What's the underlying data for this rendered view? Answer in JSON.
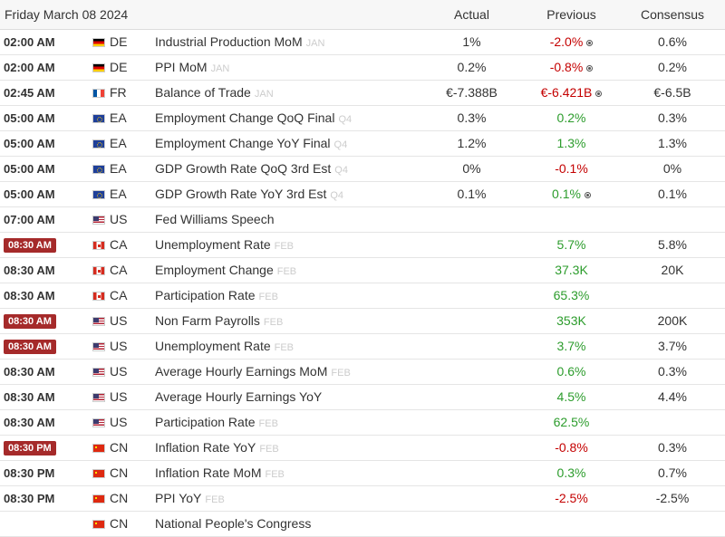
{
  "header": {
    "date": "Friday March 08 2024",
    "actual": "Actual",
    "previous": "Previous",
    "consensus": "Consensus"
  },
  "rows": [
    {
      "time": "02:00 AM",
      "highlight": false,
      "flag": "DE",
      "country": "DE",
      "event": "Industrial Production MoM",
      "period": "JAN",
      "actual": "1%",
      "actual_color": "",
      "previous": "-2.0%",
      "previous_color": "neg",
      "revised": true,
      "consensus": "0.6%",
      "consensus_color": ""
    },
    {
      "time": "02:00 AM",
      "highlight": false,
      "flag": "DE",
      "country": "DE",
      "event": "PPI MoM",
      "period": "JAN",
      "actual": "0.2%",
      "actual_color": "",
      "previous": "-0.8%",
      "previous_color": "neg",
      "revised": true,
      "consensus": "0.2%",
      "consensus_color": ""
    },
    {
      "time": "02:45 AM",
      "highlight": false,
      "flag": "FR",
      "country": "FR",
      "event": "Balance of Trade",
      "period": "JAN",
      "actual": "€-7.388B",
      "actual_color": "",
      "previous": "€-6.421B",
      "previous_color": "neg",
      "revised": true,
      "consensus": "€-6.5B",
      "consensus_color": ""
    },
    {
      "time": "05:00 AM",
      "highlight": false,
      "flag": "EA",
      "country": "EA",
      "event": "Employment Change QoQ Final",
      "period": "Q4",
      "actual": "0.3%",
      "actual_color": "",
      "previous": "0.2%",
      "previous_color": "pos",
      "revised": false,
      "consensus": "0.3%",
      "consensus_color": ""
    },
    {
      "time": "05:00 AM",
      "highlight": false,
      "flag": "EA",
      "country": "EA",
      "event": "Employment Change YoY Final",
      "period": "Q4",
      "actual": "1.2%",
      "actual_color": "",
      "previous": "1.3%",
      "previous_color": "pos",
      "revised": false,
      "consensus": "1.3%",
      "consensus_color": "pos"
    },
    {
      "time": "05:00 AM",
      "highlight": false,
      "flag": "EA",
      "country": "EA",
      "event": "GDP Growth Rate QoQ 3rd Est",
      "period": "Q4",
      "actual": "0%",
      "actual_color": "",
      "previous": "-0.1%",
      "previous_color": "neg",
      "revised": false,
      "consensus": "0%",
      "consensus_color": ""
    },
    {
      "time": "05:00 AM",
      "highlight": false,
      "flag": "EA",
      "country": "EA",
      "event": "GDP Growth Rate YoY 3rd Est",
      "period": "Q4",
      "actual": "0.1%",
      "actual_color": "",
      "previous": "0.1%",
      "previous_color": "pos",
      "revised": true,
      "consensus": "0.1%",
      "consensus_color": ""
    },
    {
      "time": "07:00 AM",
      "highlight": false,
      "flag": "US",
      "country": "US",
      "event": "Fed Williams Speech",
      "period": "",
      "actual": "",
      "actual_color": "",
      "previous": "",
      "previous_color": "",
      "revised": false,
      "consensus": "",
      "consensus_color": ""
    },
    {
      "time": "08:30 AM",
      "highlight": true,
      "flag": "CA",
      "country": "CA",
      "event": "Unemployment Rate",
      "period": "FEB",
      "actual": "",
      "actual_color": "",
      "previous": "5.7%",
      "previous_color": "pos",
      "revised": false,
      "consensus": "5.8%",
      "consensus_color": ""
    },
    {
      "time": "08:30 AM",
      "highlight": false,
      "flag": "CA",
      "country": "CA",
      "event": "Employment Change",
      "period": "FEB",
      "actual": "",
      "actual_color": "",
      "previous": "37.3K",
      "previous_color": "pos",
      "revised": false,
      "consensus": "20K",
      "consensus_color": ""
    },
    {
      "time": "08:30 AM",
      "highlight": false,
      "flag": "CA",
      "country": "CA",
      "event": "Participation Rate",
      "period": "FEB",
      "actual": "",
      "actual_color": "",
      "previous": "65.3%",
      "previous_color": "pos",
      "revised": false,
      "consensus": "",
      "consensus_color": ""
    },
    {
      "time": "08:30 AM",
      "highlight": true,
      "flag": "US",
      "country": "US",
      "event": "Non Farm Payrolls",
      "period": "FEB",
      "actual": "",
      "actual_color": "",
      "previous": "353K",
      "previous_color": "pos",
      "revised": false,
      "consensus": "200K",
      "consensus_color": ""
    },
    {
      "time": "08:30 AM",
      "highlight": true,
      "flag": "US",
      "country": "US",
      "event": "Unemployment Rate",
      "period": "FEB",
      "actual": "",
      "actual_color": "",
      "previous": "3.7%",
      "previous_color": "pos",
      "revised": false,
      "consensus": "3.7%",
      "consensus_color": ""
    },
    {
      "time": "08:30 AM",
      "highlight": false,
      "flag": "US",
      "country": "US",
      "event": "Average Hourly Earnings MoM",
      "period": "FEB",
      "actual": "",
      "actual_color": "",
      "previous": "0.6%",
      "previous_color": "pos",
      "revised": false,
      "consensus": "0.3%",
      "consensus_color": ""
    },
    {
      "time": "08:30 AM",
      "highlight": false,
      "flag": "US",
      "country": "US",
      "event": "Average Hourly Earnings YoY",
      "period": "",
      "actual": "",
      "actual_color": "",
      "previous": "4.5%",
      "previous_color": "pos",
      "revised": false,
      "consensus": "4.4%",
      "consensus_color": ""
    },
    {
      "time": "08:30 AM",
      "highlight": false,
      "flag": "US",
      "country": "US",
      "event": "Participation Rate",
      "period": "FEB",
      "actual": "",
      "actual_color": "",
      "previous": "62.5%",
      "previous_color": "pos",
      "revised": false,
      "consensus": "",
      "consensus_color": ""
    },
    {
      "time": "08:30 PM",
      "highlight": true,
      "flag": "CN",
      "country": "CN",
      "event": "Inflation Rate YoY",
      "period": "FEB",
      "actual": "",
      "actual_color": "",
      "previous": "-0.8%",
      "previous_color": "neg",
      "revised": false,
      "consensus": "0.3%",
      "consensus_color": ""
    },
    {
      "time": "08:30 PM",
      "highlight": false,
      "flag": "CN",
      "country": "CN",
      "event": "Inflation Rate MoM",
      "period": "FEB",
      "actual": "",
      "actual_color": "",
      "previous": "0.3%",
      "previous_color": "pos",
      "revised": false,
      "consensus": "0.7%",
      "consensus_color": ""
    },
    {
      "time": "08:30 PM",
      "highlight": false,
      "flag": "CN",
      "country": "CN",
      "event": "PPI YoY",
      "period": "FEB",
      "actual": "",
      "actual_color": "",
      "previous": "-2.5%",
      "previous_color": "neg",
      "revised": false,
      "consensus": "-2.5%",
      "consensus_color": ""
    },
    {
      "time": "",
      "highlight": false,
      "flag": "CN",
      "country": "CN",
      "event": "National People's Congress",
      "period": "",
      "actual": "",
      "actual_color": "",
      "previous": "",
      "previous_color": "",
      "revised": false,
      "consensus": "",
      "consensus_color": ""
    }
  ],
  "icons": {
    "revised": "revised-info-icon",
    "flags": {
      "DE": "flag-germany-icon",
      "FR": "flag-france-icon",
      "EA": "flag-euro-area-icon",
      "US": "flag-usa-icon",
      "CA": "flag-canada-icon",
      "CN": "flag-china-icon"
    }
  },
  "colors": {
    "positive": "#2c9c2c",
    "negative": "#c40000",
    "highlight_badge": "#a52a2a"
  }
}
